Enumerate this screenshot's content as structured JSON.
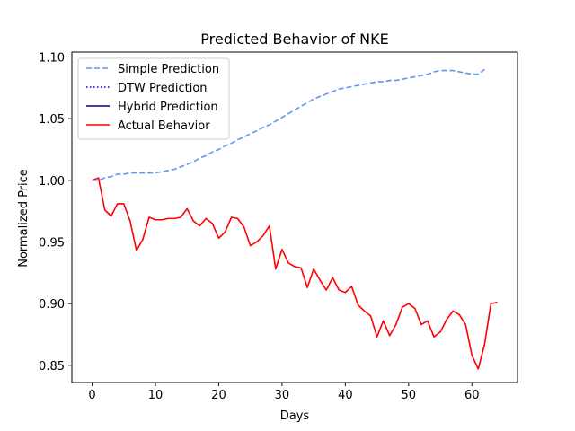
{
  "chart_data": {
    "type": "line",
    "title": "Predicted Behavior of NKE",
    "xlabel": "Days",
    "ylabel": "Normalized Price",
    "xlim": [
      -3.2,
      67.2
    ],
    "ylim": [
      0.836,
      1.104
    ],
    "xticks": [
      0,
      10,
      20,
      30,
      40,
      50,
      60
    ],
    "yticks": [
      0.85,
      0.9,
      0.95,
      1.0,
      1.05,
      1.1
    ],
    "ytick_labels": [
      "0.85",
      "0.90",
      "0.95",
      "1.00",
      "1.05",
      "1.10"
    ],
    "grid": false,
    "legend_position": "top-left",
    "series": [
      {
        "name": "Simple Prediction",
        "color": "#6495ED",
        "dash": "dashed",
        "x": [
          0,
          1,
          2,
          3,
          4,
          5,
          6,
          7,
          8,
          9,
          10,
          11,
          12,
          13,
          14,
          15,
          16,
          17,
          18,
          19,
          20,
          21,
          22,
          23,
          24,
          25,
          26,
          27,
          28,
          29,
          30,
          31,
          32,
          33,
          34,
          35,
          36,
          37,
          38,
          39,
          40,
          41,
          42,
          43,
          44,
          45,
          46,
          47,
          48,
          49,
          50,
          51,
          52,
          53,
          54,
          55,
          56,
          57,
          58,
          59,
          60,
          61,
          62
        ],
        "values": [
          1.0,
          1.0,
          1.002,
          1.003,
          1.005,
          1.005,
          1.006,
          1.006,
          1.006,
          1.006,
          1.006,
          1.007,
          1.008,
          1.009,
          1.011,
          1.013,
          1.015,
          1.018,
          1.02,
          1.023,
          1.025,
          1.028,
          1.03,
          1.033,
          1.035,
          1.038,
          1.04,
          1.043,
          1.045,
          1.048,
          1.051,
          1.054,
          1.057,
          1.06,
          1.063,
          1.066,
          1.068,
          1.07,
          1.072,
          1.074,
          1.075,
          1.076,
          1.077,
          1.078,
          1.079,
          1.08,
          1.08,
          1.081,
          1.081,
          1.082,
          1.083,
          1.084,
          1.085,
          1.086,
          1.088,
          1.089,
          1.089,
          1.089,
          1.088,
          1.087,
          1.086,
          1.086,
          1.09
        ]
      },
      {
        "name": "DTW Prediction",
        "color": "#0000FF",
        "dash": "dotted",
        "x": [],
        "values": []
      },
      {
        "name": "Hybrid Prediction",
        "color": "#00008B",
        "dash": "solid",
        "x": [],
        "values": []
      },
      {
        "name": "Actual Behavior",
        "color": "#FF0000",
        "dash": "solid",
        "x": [
          0,
          1,
          2,
          3,
          4,
          5,
          6,
          7,
          8,
          9,
          10,
          11,
          12,
          13,
          14,
          15,
          16,
          17,
          18,
          19,
          20,
          21,
          22,
          23,
          24,
          25,
          26,
          27,
          28,
          29,
          30,
          31,
          32,
          33,
          34,
          35,
          36,
          37,
          38,
          39,
          40,
          41,
          42,
          43,
          44,
          45,
          46,
          47,
          48,
          49,
          50,
          51,
          52,
          53,
          54,
          55,
          56,
          57,
          58,
          59,
          60,
          61,
          62,
          63,
          64
        ],
        "values": [
          1.0,
          1.002,
          0.976,
          0.971,
          0.981,
          0.981,
          0.967,
          0.943,
          0.952,
          0.97,
          0.968,
          0.968,
          0.969,
          0.969,
          0.97,
          0.977,
          0.967,
          0.963,
          0.969,
          0.965,
          0.953,
          0.958,
          0.97,
          0.969,
          0.962,
          0.947,
          0.95,
          0.955,
          0.963,
          0.928,
          0.944,
          0.933,
          0.93,
          0.929,
          0.913,
          0.928,
          0.919,
          0.911,
          0.921,
          0.911,
          0.909,
          0.914,
          0.899,
          0.894,
          0.89,
          0.873,
          0.886,
          0.874,
          0.883,
          0.897,
          0.9,
          0.896,
          0.883,
          0.886,
          0.873,
          0.877,
          0.887,
          0.894,
          0.891,
          0.883,
          0.858,
          0.847,
          0.867,
          0.9,
          0.901
        ]
      }
    ]
  }
}
